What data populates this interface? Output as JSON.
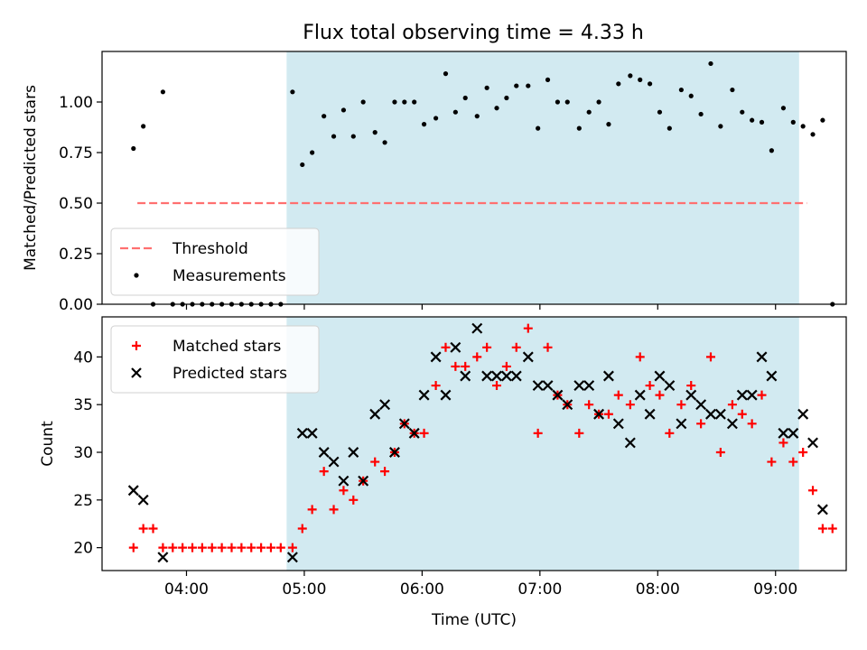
{
  "figure": {
    "title": "Flux total observing time = 4.33 h"
  },
  "chart_data": [
    {
      "type": "scatter",
      "panel": "top",
      "ylabel": "Matched/Predicted stars",
      "xlim": [
        "03:17",
        "09:36"
      ],
      "ylim": [
        0,
        1.25
      ],
      "x_ticks": [
        "04:00",
        "05:00",
        "06:00",
        "07:00",
        "08:00",
        "09:00"
      ],
      "y_ticks": [
        "0.00",
        "0.25",
        "0.50",
        "0.75",
        "1.00"
      ],
      "grid": false,
      "shaded_interval": [
        "04:51",
        "09:12"
      ],
      "shaded_color": "#add8e6",
      "legend_position": "lower-left",
      "threshold": {
        "name": "Threshold",
        "value": 0.5,
        "x_range": [
          "03:35",
          "09:16"
        ],
        "color": "#ff7070",
        "style": "dashed"
      },
      "series": [
        {
          "name": "Measurements",
          "color": "#000000",
          "marker": "dot",
          "points": [
            [
              "03:33",
              0.77
            ],
            [
              "03:38",
              0.88
            ],
            [
              "03:43",
              0.0
            ],
            [
              "03:48",
              1.05
            ],
            [
              "03:53",
              0.0
            ],
            [
              "03:58",
              0.0
            ],
            [
              "04:03",
              0.0
            ],
            [
              "04:08",
              0.0
            ],
            [
              "04:13",
              0.0
            ],
            [
              "04:18",
              0.0
            ],
            [
              "04:23",
              0.0
            ],
            [
              "04:28",
              0.0
            ],
            [
              "04:33",
              0.0
            ],
            [
              "04:38",
              0.0
            ],
            [
              "04:43",
              0.0
            ],
            [
              "04:48",
              0.0
            ],
            [
              "04:54",
              1.05
            ],
            [
              "04:59",
              0.69
            ],
            [
              "05:04",
              0.75
            ],
            [
              "05:10",
              0.93
            ],
            [
              "05:15",
              0.83
            ],
            [
              "05:20",
              0.96
            ],
            [
              "05:25",
              0.83
            ],
            [
              "05:30",
              1.0
            ],
            [
              "05:36",
              0.85
            ],
            [
              "05:41",
              0.8
            ],
            [
              "05:46",
              1.0
            ],
            [
              "05:51",
              1.0
            ],
            [
              "05:56",
              1.0
            ],
            [
              "06:01",
              0.89
            ],
            [
              "06:07",
              0.92
            ],
            [
              "06:12",
              1.14
            ],
            [
              "06:17",
              0.95
            ],
            [
              "06:22",
              1.02
            ],
            [
              "06:28",
              0.93
            ],
            [
              "06:33",
              1.07
            ],
            [
              "06:38",
              0.97
            ],
            [
              "06:43",
              1.02
            ],
            [
              "06:48",
              1.08
            ],
            [
              "06:54",
              1.08
            ],
            [
              "06:59",
              0.87
            ],
            [
              "07:04",
              1.11
            ],
            [
              "07:09",
              1.0
            ],
            [
              "07:14",
              1.0
            ],
            [
              "07:20",
              0.87
            ],
            [
              "07:25",
              0.95
            ],
            [
              "07:30",
              1.0
            ],
            [
              "07:35",
              0.89
            ],
            [
              "07:40",
              1.09
            ],
            [
              "07:46",
              1.13
            ],
            [
              "07:51",
              1.11
            ],
            [
              "07:56",
              1.09
            ],
            [
              "08:01",
              0.95
            ],
            [
              "08:06",
              0.87
            ],
            [
              "08:12",
              1.06
            ],
            [
              "08:17",
              1.03
            ],
            [
              "08:22",
              0.94
            ],
            [
              "08:27",
              1.19
            ],
            [
              "08:32",
              0.88
            ],
            [
              "08:38",
              1.06
            ],
            [
              "08:43",
              0.95
            ],
            [
              "08:48",
              0.91
            ],
            [
              "08:53",
              0.9
            ],
            [
              "08:58",
              0.76
            ],
            [
              "09:04",
              0.97
            ],
            [
              "09:09",
              0.9
            ],
            [
              "09:14",
              0.88
            ],
            [
              "09:19",
              0.84
            ],
            [
              "09:24",
              0.91
            ],
            [
              "09:29",
              0.0
            ]
          ]
        }
      ]
    },
    {
      "type": "scatter",
      "panel": "bottom",
      "xlabel": "Time (UTC)",
      "ylabel": "Count",
      "xlim": [
        "03:17",
        "09:36"
      ],
      "ylim": [
        17.6,
        44.2
      ],
      "x_ticks": [
        "04:00",
        "05:00",
        "06:00",
        "07:00",
        "08:00",
        "09:00"
      ],
      "y_ticks": [
        "20",
        "25",
        "30",
        "35",
        "40"
      ],
      "grid": false,
      "shaded_interval": [
        "04:51",
        "09:12"
      ],
      "shaded_color": "#add8e6",
      "legend_position": "upper-left",
      "series": [
        {
          "name": "Matched stars",
          "color": "#ff0000",
          "marker": "plus",
          "points": [
            [
              "03:33",
              20
            ],
            [
              "03:38",
              22
            ],
            [
              "03:43",
              22
            ],
            [
              "03:48",
              20
            ],
            [
              "03:53",
              20
            ],
            [
              "03:58",
              20
            ],
            [
              "04:03",
              20
            ],
            [
              "04:08",
              20
            ],
            [
              "04:13",
              20
            ],
            [
              "04:18",
              20
            ],
            [
              "04:23",
              20
            ],
            [
              "04:28",
              20
            ],
            [
              "04:33",
              20
            ],
            [
              "04:38",
              20
            ],
            [
              "04:43",
              20
            ],
            [
              "04:48",
              20
            ],
            [
              "04:54",
              20
            ],
            [
              "04:59",
              22
            ],
            [
              "05:04",
              24
            ],
            [
              "05:10",
              28
            ],
            [
              "05:15",
              24
            ],
            [
              "05:20",
              26
            ],
            [
              "05:25",
              25
            ],
            [
              "05:30",
              27
            ],
            [
              "05:36",
              29
            ],
            [
              "05:41",
              28
            ],
            [
              "05:46",
              30
            ],
            [
              "05:51",
              33
            ],
            [
              "05:56",
              32
            ],
            [
              "06:01",
              32
            ],
            [
              "06:07",
              37
            ],
            [
              "06:12",
              41
            ],
            [
              "06:17",
              39
            ],
            [
              "06:22",
              39
            ],
            [
              "06:28",
              40
            ],
            [
              "06:33",
              41
            ],
            [
              "06:38",
              37
            ],
            [
              "06:43",
              39
            ],
            [
              "06:48",
              41
            ],
            [
              "06:54",
              43
            ],
            [
              "06:59",
              32
            ],
            [
              "07:04",
              41
            ],
            [
              "07:09",
              36
            ],
            [
              "07:14",
              35
            ],
            [
              "07:20",
              32
            ],
            [
              "07:25",
              35
            ],
            [
              "07:30",
              34
            ],
            [
              "07:35",
              34
            ],
            [
              "07:40",
              36
            ],
            [
              "07:46",
              35
            ],
            [
              "07:51",
              40
            ],
            [
              "07:56",
              37
            ],
            [
              "08:01",
              36
            ],
            [
              "08:06",
              32
            ],
            [
              "08:12",
              35
            ],
            [
              "08:17",
              37
            ],
            [
              "08:22",
              33
            ],
            [
              "08:27",
              40
            ],
            [
              "08:32",
              30
            ],
            [
              "08:38",
              35
            ],
            [
              "08:43",
              34
            ],
            [
              "08:48",
              33
            ],
            [
              "08:53",
              36
            ],
            [
              "08:58",
              29
            ],
            [
              "09:04",
              31
            ],
            [
              "09:09",
              29
            ],
            [
              "09:14",
              30
            ],
            [
              "09:19",
              26
            ],
            [
              "09:24",
              22
            ],
            [
              "09:29",
              22
            ]
          ]
        },
        {
          "name": "Predicted stars",
          "color": "#000000",
          "marker": "x",
          "points": [
            [
              "03:33",
              26
            ],
            [
              "03:38",
              25
            ],
            [
              "03:48",
              19
            ],
            [
              "04:54",
              19
            ],
            [
              "04:59",
              32
            ],
            [
              "05:04",
              32
            ],
            [
              "05:10",
              30
            ],
            [
              "05:15",
              29
            ],
            [
              "05:20",
              27
            ],
            [
              "05:25",
              30
            ],
            [
              "05:30",
              27
            ],
            [
              "05:36",
              34
            ],
            [
              "05:41",
              35
            ],
            [
              "05:46",
              30
            ],
            [
              "05:51",
              33
            ],
            [
              "05:56",
              32
            ],
            [
              "06:01",
              36
            ],
            [
              "06:07",
              40
            ],
            [
              "06:12",
              36
            ],
            [
              "06:17",
              41
            ],
            [
              "06:22",
              38
            ],
            [
              "06:28",
              43
            ],
            [
              "06:33",
              38
            ],
            [
              "06:38",
              38
            ],
            [
              "06:43",
              38
            ],
            [
              "06:48",
              38
            ],
            [
              "06:54",
              40
            ],
            [
              "06:59",
              37
            ],
            [
              "07:04",
              37
            ],
            [
              "07:09",
              36
            ],
            [
              "07:14",
              35
            ],
            [
              "07:20",
              37
            ],
            [
              "07:25",
              37
            ],
            [
              "07:30",
              34
            ],
            [
              "07:35",
              38
            ],
            [
              "07:40",
              33
            ],
            [
              "07:46",
              31
            ],
            [
              "07:51",
              36
            ],
            [
              "07:56",
              34
            ],
            [
              "08:01",
              38
            ],
            [
              "08:06",
              37
            ],
            [
              "08:12",
              33
            ],
            [
              "08:17",
              36
            ],
            [
              "08:22",
              35
            ],
            [
              "08:27",
              34
            ],
            [
              "08:32",
              34
            ],
            [
              "08:38",
              33
            ],
            [
              "08:43",
              36
            ],
            [
              "08:48",
              36
            ],
            [
              "08:53",
              40
            ],
            [
              "08:58",
              38
            ],
            [
              "09:04",
              32
            ],
            [
              "09:09",
              32
            ],
            [
              "09:14",
              34
            ],
            [
              "09:19",
              31
            ],
            [
              "09:24",
              24
            ]
          ]
        }
      ]
    }
  ]
}
